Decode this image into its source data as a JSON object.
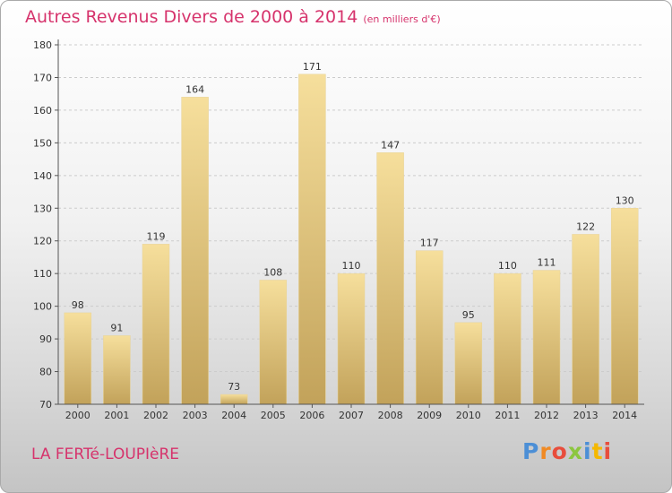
{
  "header": {
    "title": "Autres Revenus Divers de 2000 à 2014",
    "subtitle": "(en milliers d'€)"
  },
  "footer": {
    "commune": "LA FERTé-LOUPIèRE",
    "logo_letters": [
      "P",
      "r",
      "o",
      "x",
      "i",
      "t",
      "i"
    ],
    "logo_colors": [
      "#4c8fd6",
      "#f08a24",
      "#e84d3c",
      "#8cc63f",
      "#4c8fd6",
      "#f5b800",
      "#e84d3c"
    ]
  },
  "colors": {
    "bar_top": "#f6df9c",
    "bar_bottom": "#c2a25a",
    "axis": "#555555",
    "grid": "#cccccc",
    "title": "#d6336c"
  },
  "chart_data": {
    "type": "bar",
    "categories": [
      "2000",
      "2001",
      "2002",
      "2003",
      "2004",
      "2005",
      "2006",
      "2007",
      "2008",
      "2009",
      "2010",
      "2011",
      "2012",
      "2013",
      "2014"
    ],
    "values": [
      98,
      91,
      119,
      164,
      73,
      108,
      171,
      110,
      147,
      117,
      95,
      110,
      111,
      122,
      130
    ],
    "ylim": [
      70,
      180
    ],
    "yticks": [
      70,
      80,
      90,
      100,
      110,
      120,
      130,
      140,
      150,
      160,
      170,
      180
    ],
    "grid": true,
    "data_labels": true
  }
}
